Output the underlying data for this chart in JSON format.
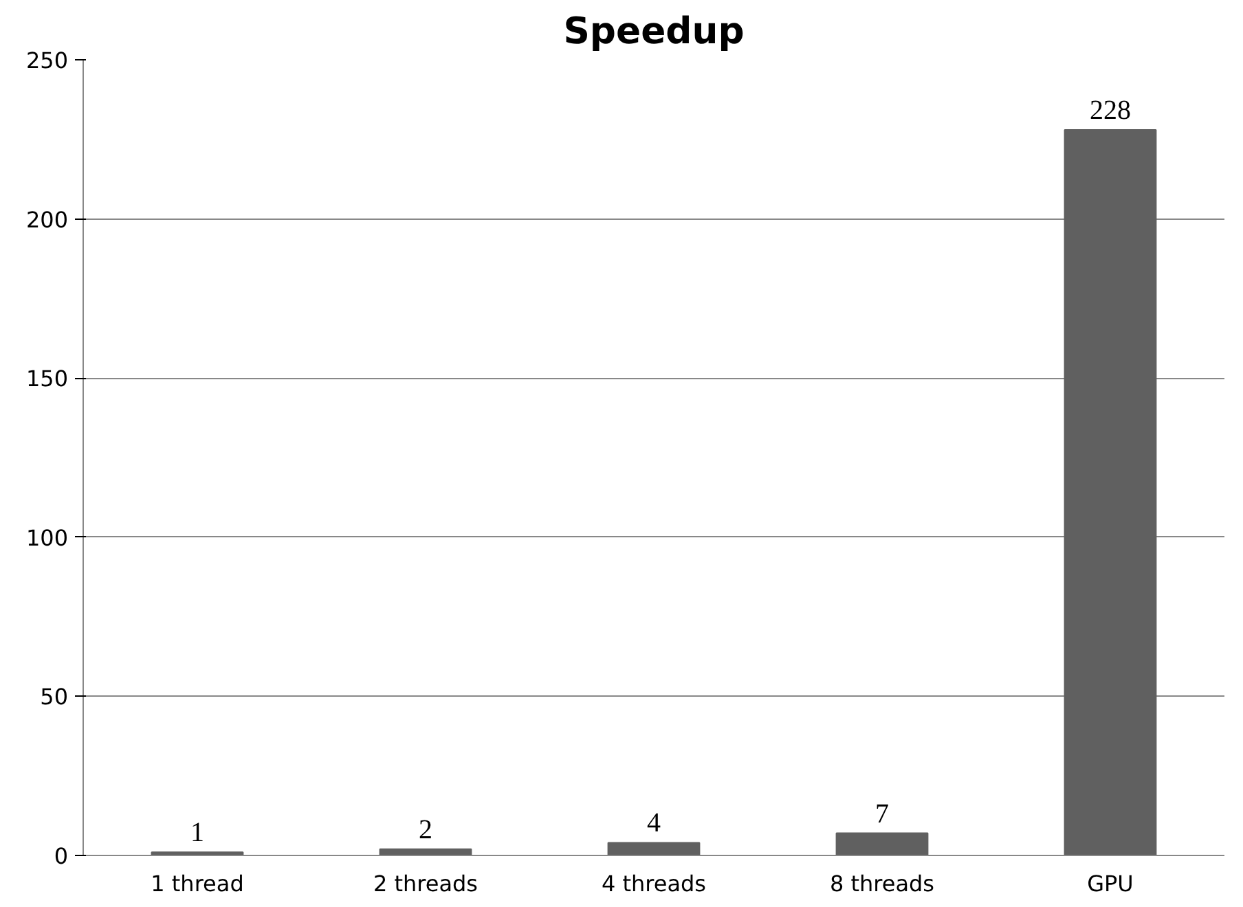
{
  "chart_data": {
    "type": "bar",
    "title": "Speedup",
    "categories": [
      "1 thread",
      "2 threads",
      "4 threads",
      "8 threads",
      "GPU"
    ],
    "values": [
      1,
      2,
      4,
      7,
      228
    ],
    "color": "#606060",
    "ylim": [
      0,
      250
    ],
    "yticks": [
      0,
      50,
      100,
      150,
      200,
      250
    ],
    "grid": "y",
    "data_labels": true
  }
}
